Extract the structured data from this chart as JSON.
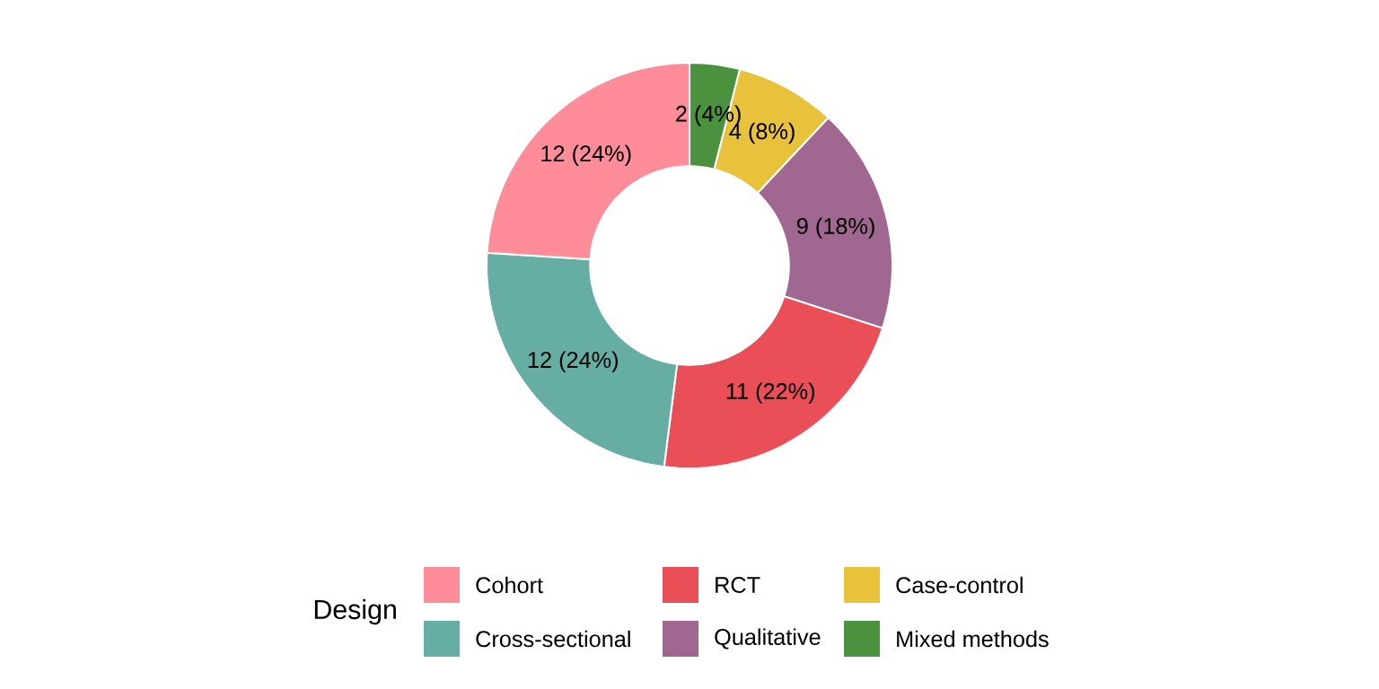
{
  "chart_data": {
    "type": "donut",
    "legend_title": "Design",
    "legend": "bottom",
    "categories": [
      "Cohort",
      "Cross-sectional",
      "RCT",
      "Qualitative",
      "Case-control",
      "Mixed methods"
    ],
    "values": [
      12,
      12,
      11,
      9,
      4,
      2
    ],
    "colors": [
      "#ff8c99",
      "#66ada3",
      "#ea4f58",
      "#a06790",
      "#e8c23a",
      "#4a923d"
    ],
    "value_labels": [
      "12 (24%)",
      "12 (24%)",
      "11 (22%)",
      "9 (18%)",
      "4 (8%)",
      "2 (4%)"
    ]
  }
}
